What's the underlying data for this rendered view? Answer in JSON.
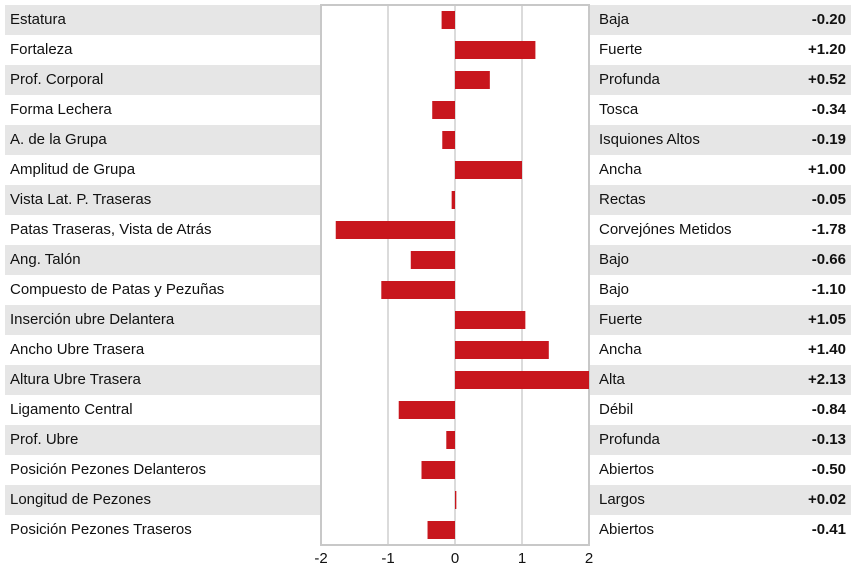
{
  "chart_data": {
    "type": "bar",
    "orientation": "horizontal",
    "categories": [
      "Estatura",
      "Fortaleza",
      "Prof. Corporal",
      "Forma Lechera",
      "A. de la Grupa",
      "Amplitud de Grupa",
      "Vista Lat. P. Traseras",
      "Patas Traseras, Vista de Atrás",
      "Ang. Talón",
      "Compuesto de Patas y Pezuñas",
      "Inserción ubre Delantera",
      "Ancho Ubre Trasera",
      "Altura Ubre Trasera",
      "Ligamento Central",
      "Prof. Ubre",
      "Posición Pezones Delanteros",
      "Longitud de Pezones",
      "Posición Pezones Traseros"
    ],
    "descriptors": [
      "Baja",
      "Fuerte",
      "Profunda",
      "Tosca",
      "Isquiones Altos",
      "Ancha",
      "Rectas",
      "Corvejónes Metidos",
      "Bajo",
      "Bajo",
      "Fuerte",
      "Ancha",
      "Alta",
      "Débil",
      "Profunda",
      "Abiertos",
      "Largos",
      "Abiertos"
    ],
    "values": [
      -0.2,
      1.2,
      0.52,
      -0.34,
      -0.19,
      1.0,
      -0.05,
      -1.78,
      -0.66,
      -1.1,
      1.05,
      1.4,
      2.13,
      -0.84,
      -0.13,
      -0.5,
      0.02,
      -0.41
    ],
    "value_labels": [
      "-0.20",
      "+1.20",
      "+0.52",
      "-0.34",
      "-0.19",
      "+1.00",
      "-0.05",
      "-1.78",
      "-0.66",
      "-1.10",
      "+1.05",
      "+1.40",
      "+2.13",
      "-0.84",
      "-0.13",
      "-0.50",
      "+0.02",
      "-0.41"
    ],
    "color": "#c8161d",
    "xlim": [
      -2,
      2
    ],
    "xticks": [
      -2,
      -1,
      0,
      1,
      2
    ],
    "grid": true
  }
}
